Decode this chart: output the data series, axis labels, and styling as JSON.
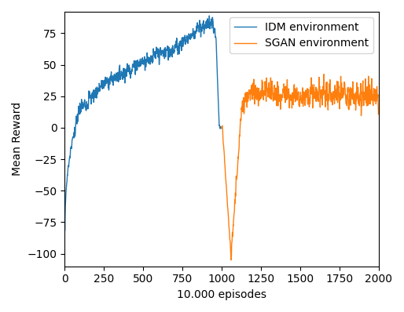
{
  "title": "",
  "xlabel": "10.000 episodes",
  "ylabel": "Mean Reward",
  "idm_color": "#1f77b4",
  "sgan_color": "#ff7f0e",
  "idm_label": "IDM environment",
  "sgan_label": "SGAN environment",
  "ylim": [
    -110,
    92
  ],
  "xlim": [
    0,
    2000
  ],
  "xticks": [
    0,
    250,
    500,
    750,
    1000,
    1250,
    1500,
    1750,
    2000
  ],
  "yticks": [
    -100,
    -75,
    -50,
    -25,
    0,
    25,
    50,
    75
  ],
  "figsize": [
    5.14,
    3.98
  ],
  "dpi": 100,
  "linewidth": 1.0,
  "n_idm": 1000,
  "n_sgan": 1000,
  "seed_idm": 7,
  "seed_sgan": 13
}
